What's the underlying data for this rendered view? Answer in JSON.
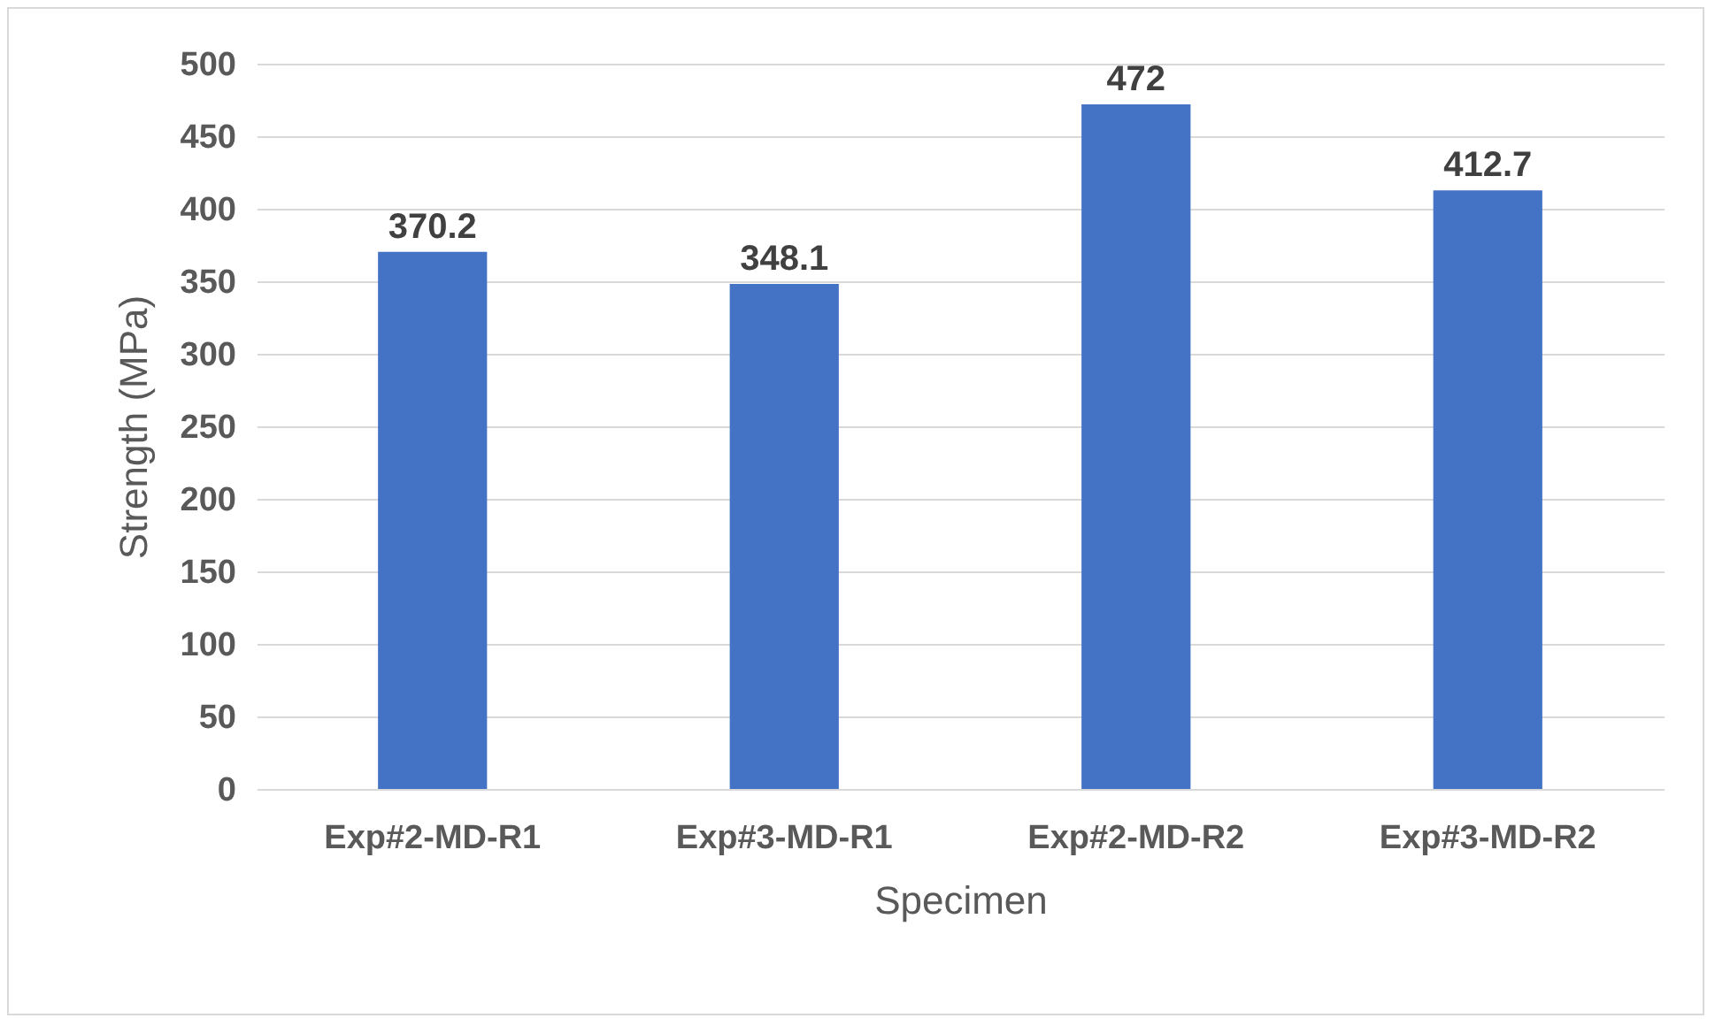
{
  "chart_data": {
    "type": "bar",
    "xlabel": "Specimen",
    "ylabel": "Strength (MPa)",
    "categories": [
      "Exp#2-MD-R1",
      "Exp#3-MD-R1",
      "Exp#2-MD-R2",
      "Exp#3-MD-R2"
    ],
    "values": [
      370.2,
      348.1,
      472,
      412.7
    ],
    "color": "#4472c4",
    "ylim": [
      0,
      500
    ],
    "yticks": [
      0,
      50,
      100,
      150,
      200,
      250,
      300,
      350,
      400,
      450,
      500
    ],
    "grid": "y",
    "data_labels": true
  }
}
